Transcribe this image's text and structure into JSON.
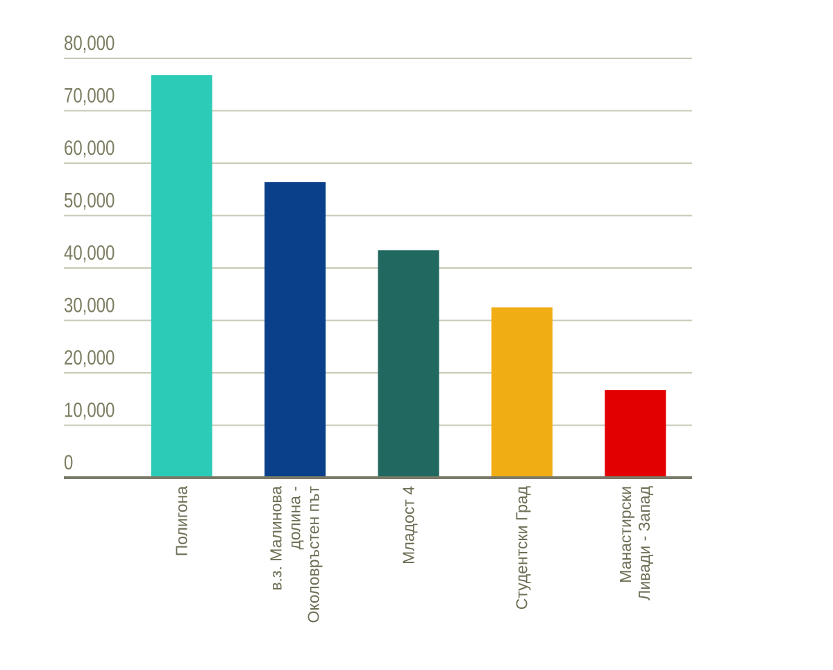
{
  "chart_data": {
    "type": "bar",
    "categories": [
      "Полигона",
      "в.з. Малинова долина - Околовръстен път",
      "Младост 4",
      "Студентски Град",
      "Манастирски Ливади - Запад"
    ],
    "values": [
      76800,
      56400,
      43400,
      32500,
      16700
    ],
    "colors": [
      "#2ccbb8",
      "#0a3f8a",
      "#206860",
      "#f0ae14",
      "#e30000"
    ],
    "ylim": [
      0,
      80000
    ],
    "yticks": [
      0,
      {
        "value": 10000,
        "label": "10,000"
      },
      {
        "value": 20000,
        "label": "20,000"
      },
      {
        "value": 30000,
        "label": "30,000"
      },
      {
        "value": 40000,
        "label": "40,000"
      },
      {
        "value": 50000,
        "label": "50,000"
      },
      {
        "value": 60000,
        "label": "60,000"
      },
      {
        "value": 70000,
        "label": "70,000"
      },
      {
        "value": 80000,
        "label": "80,000"
      }
    ],
    "grid": true
  }
}
